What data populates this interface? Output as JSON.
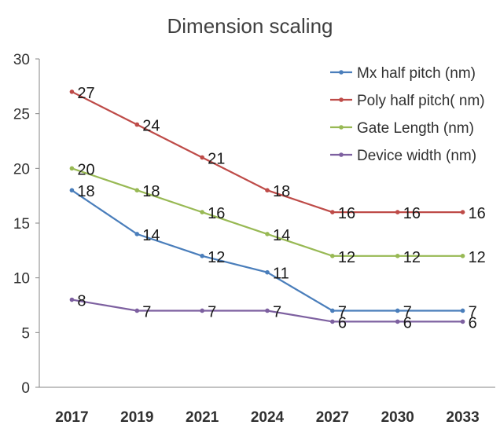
{
  "chart_data": {
    "type": "line",
    "title": "Dimension scaling",
    "xlabel": "",
    "ylabel": "",
    "categories": [
      "2017",
      "2019",
      "2021",
      "2024",
      "2027",
      "2030",
      "2033"
    ],
    "ylim": [
      0,
      30
    ],
    "yticks": [
      0,
      5,
      10,
      15,
      20,
      25,
      30
    ],
    "grid": false,
    "legend_position": "top-right",
    "series": [
      {
        "name": "Mx half pitch (nm)",
        "color": "#4a7ebb",
        "values": [
          18,
          14,
          12,
          10.5,
          7,
          7,
          7
        ],
        "labels": [
          "18",
          "14",
          "12",
          "11",
          "7",
          "7",
          "7"
        ]
      },
      {
        "name": "Poly half pitch( nm)",
        "color": "#be4b48",
        "values": [
          27,
          24,
          21,
          18,
          16,
          16,
          16
        ],
        "labels": [
          "27",
          "24",
          "21",
          "18",
          "16",
          "16",
          "16"
        ]
      },
      {
        "name": "Gate Length (nm)",
        "color": "#98b954",
        "values": [
          20,
          18,
          16,
          14,
          12,
          12,
          12
        ],
        "labels": [
          "20",
          "18",
          "16",
          "14",
          "12",
          "12",
          "12"
        ]
      },
      {
        "name": "Device width (nm)",
        "color": "#7d60a0",
        "values": [
          8,
          7,
          7,
          7,
          6,
          6,
          6
        ],
        "labels": [
          "8",
          "7",
          "7",
          "7",
          "6",
          "6",
          "6"
        ]
      }
    ]
  }
}
